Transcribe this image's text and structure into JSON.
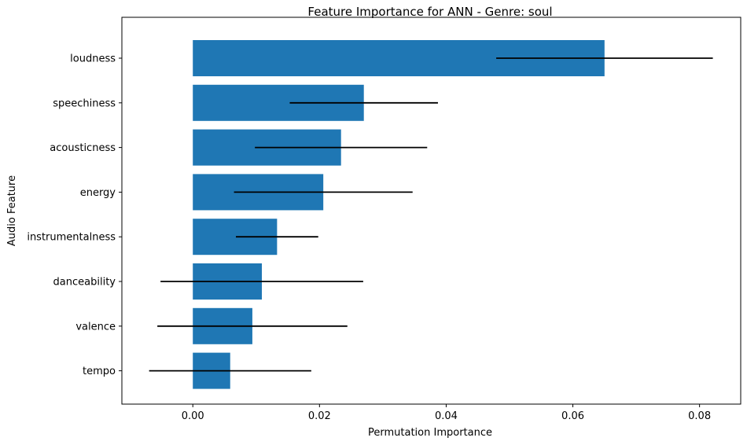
{
  "chart_data": {
    "type": "bar",
    "orientation": "horizontal",
    "title": "Feature Importance for ANN - Genre: soul",
    "xlabel": "Permutation Importance",
    "ylabel": "Audio Feature",
    "xlim": [
      -0.0112,
      0.0865
    ],
    "xticks": [
      "0.00",
      "0.02",
      "0.04",
      "0.06",
      "0.08"
    ],
    "xtick_values": [
      0.0,
      0.02,
      0.04,
      0.06,
      0.08
    ],
    "categories": [
      "loudness",
      "speechiness",
      "acousticness",
      "energy",
      "instrumentalness",
      "danceability",
      "valence",
      "tempo"
    ],
    "values": [
      0.065,
      0.027,
      0.0234,
      0.0206,
      0.0133,
      0.0109,
      0.0094,
      0.0059
    ],
    "errors": [
      0.0171,
      0.0117,
      0.0136,
      0.0141,
      0.0065,
      0.016,
      0.015,
      0.0128
    ],
    "bar_color": "#1f77b4",
    "error_color": "#000000",
    "grid": false,
    "legend": "none"
  }
}
